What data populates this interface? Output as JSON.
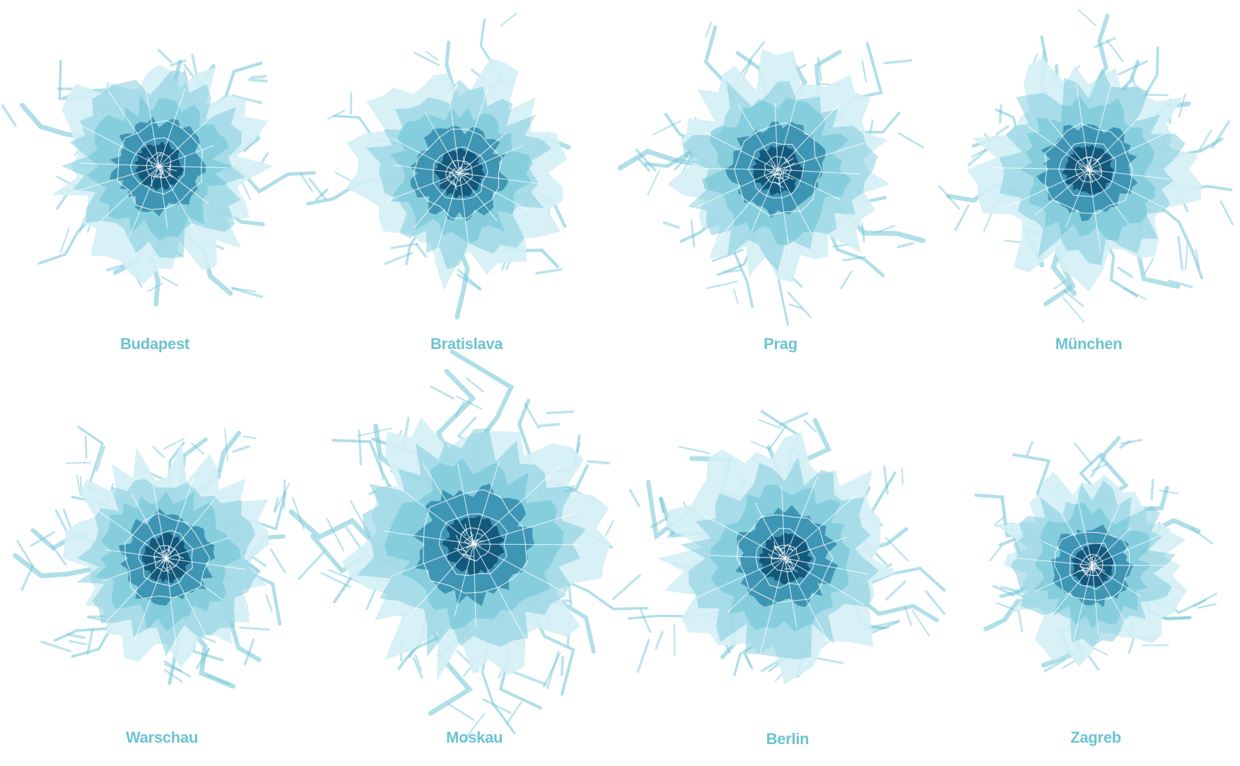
{
  "colors": {
    "light": "#d4f0f5",
    "mid": "#6fc4d6",
    "dark": "#1f7fa2",
    "core": "#0b4f72",
    "roads": "#ffffff",
    "label": "#6cc3d2"
  },
  "cities": [
    {
      "name": "Budapest"
    },
    {
      "name": "Bratislava"
    },
    {
      "name": "Prag"
    },
    {
      "name": "München"
    },
    {
      "name": "Warschau"
    },
    {
      "name": "Moskau"
    },
    {
      "name": "Berlin"
    },
    {
      "name": "Zagreb"
    }
  ]
}
